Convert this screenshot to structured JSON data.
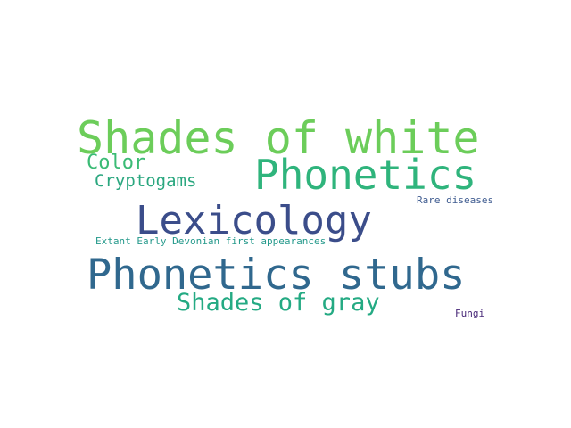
{
  "words": [
    {
      "text": "Shades of white",
      "color": "#6ccd5a"
    },
    {
      "text": "Phonetics",
      "color": "#2fb47c"
    },
    {
      "text": "Color",
      "color": "#3bbb75"
    },
    {
      "text": "Cryptogams",
      "color": "#2aa77f"
    },
    {
      "text": "Lexicology",
      "color": "#3b4d8a"
    },
    {
      "text": "Rare diseases",
      "color": "#3d5a8f"
    },
    {
      "text": "Extant Early Devonian first appearances",
      "color": "#24998b"
    },
    {
      "text": "Phonetics stubs",
      "color": "#30688e"
    },
    {
      "text": "Shades of gray",
      "color": "#24aa83"
    },
    {
      "text": "Fungi",
      "color": "#482878"
    }
  ]
}
